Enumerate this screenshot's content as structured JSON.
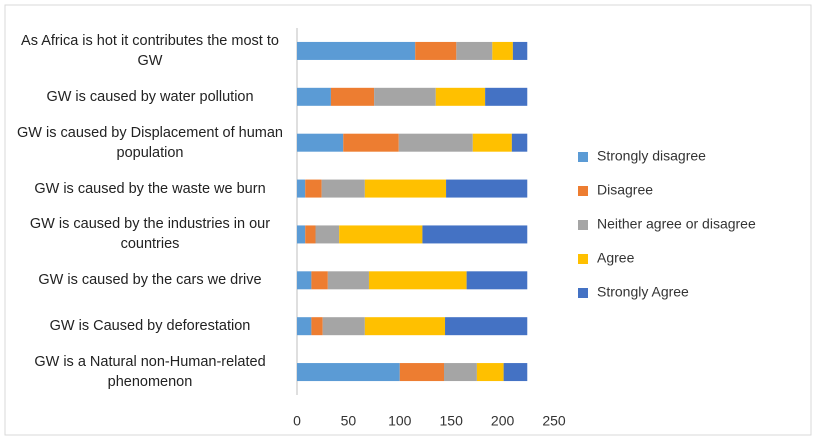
{
  "chart_data": {
    "type": "stacked-barh",
    "categories": [
      "As Africa is hot it contributes the most to GW",
      "GW is caused by water pollution",
      "GW is caused by Displacement of human population",
      "GW is caused by the waste we burn",
      "GW is caused by the industries in our countries",
      "GW is caused by the cars we drive",
      "GW is Caused by deforestation",
      "GW is a Natural non-Human-related phenomenon"
    ],
    "series": [
      {
        "name": "Strongly disagree",
        "color": "#5b9bd5",
        "values": [
          115,
          33,
          45,
          8,
          8,
          14,
          14,
          100
        ]
      },
      {
        "name": "Disagree",
        "color": "#ed7d31",
        "values": [
          40,
          42,
          54,
          16,
          10,
          16,
          11,
          43
        ]
      },
      {
        "name": "Neither agree or disagree",
        "color": "#a5a5a5",
        "values": [
          35,
          60,
          72,
          42,
          23,
          40,
          41,
          32
        ]
      },
      {
        "name": "Agree",
        "color": "#ffc000",
        "values": [
          20,
          48,
          38,
          79,
          81,
          95,
          78,
          26
        ]
      },
      {
        "name": "Strongly Agree",
        "color": "#4472c4",
        "values": [
          14,
          41,
          15,
          79,
          102,
          59,
          80,
          23
        ]
      }
    ],
    "xlim": [
      0,
      250
    ],
    "xticks": [
      0,
      50,
      100,
      150,
      200,
      250
    ],
    "grid": false,
    "legend": "right"
  }
}
